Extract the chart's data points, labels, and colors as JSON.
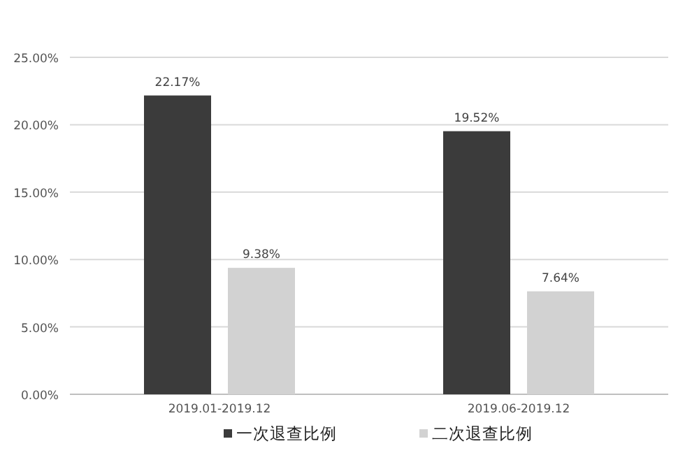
{
  "chart_data": {
    "type": "bar",
    "categories": [
      "2019.01-2019.12",
      "2019.06-2019.12"
    ],
    "series": [
      {
        "name": "一次退查比例",
        "color": "#3b3b3b",
        "values": [
          22.17,
          19.52
        ],
        "value_labels": [
          "22.17%",
          "19.52%"
        ]
      },
      {
        "name": "二次退查比例",
        "color": "#d2d2d2",
        "values": [
          9.38,
          7.64
        ],
        "value_labels": [
          "9.38%",
          "7.64%"
        ]
      }
    ],
    "ylim": [
      0,
      25
    ],
    "yticks": [
      {
        "value": 0,
        "label": "0.00%"
      },
      {
        "value": 5,
        "label": "5.00%"
      },
      {
        "value": 10,
        "label": "10.00%"
      },
      {
        "value": 15,
        "label": "15.00%"
      },
      {
        "value": 20,
        "label": "20.00%"
      },
      {
        "value": 25,
        "label": "25.00%"
      }
    ],
    "grid": "y",
    "legend": "bottom"
  }
}
